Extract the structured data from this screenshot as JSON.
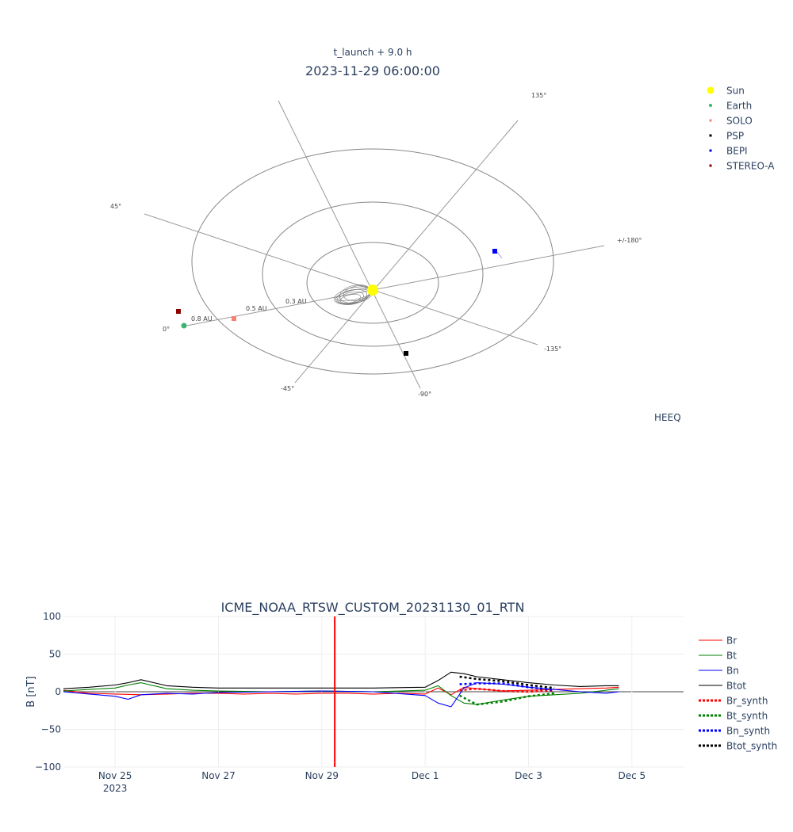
{
  "polar": {
    "subtitle": "t_launch + 9.0 h",
    "title": "2023-11-29 06:00:00",
    "frame_label": "HEEQ",
    "radial_ticks": [
      "0.3 AU",
      "0.5 AU",
      "0.8 AU"
    ],
    "angle_ticks": [
      "0°",
      "45°",
      "135°",
      "+/-180°",
      "-135°",
      "-90°",
      "-45°"
    ],
    "legend": [
      {
        "name": "Sun",
        "color": "#ffff00",
        "symbol": "circle-large"
      },
      {
        "name": "Earth",
        "color": "#3cb371",
        "symbol": "circle"
      },
      {
        "name": "SOLO",
        "color": "#fa8072",
        "symbol": "square"
      },
      {
        "name": "PSP",
        "color": "#000000",
        "symbol": "square"
      },
      {
        "name": "BEPI",
        "color": "#0000ff",
        "symbol": "square"
      },
      {
        "name": "STEREO-A",
        "color": "#8b0000",
        "symbol": "square"
      }
    ]
  },
  "chart_data": {
    "type": "line",
    "title": "ICME_NOAA_RTSW_CUSTOM_20231130_01_RTN",
    "ylabel": "B [nT]",
    "xlabel": "",
    "ylim": [
      -100,
      100
    ],
    "y_ticks": [
      100,
      50,
      0,
      -50,
      -100
    ],
    "y_tick_labels": [
      "100",
      "50",
      "0",
      "−50",
      "−100"
    ],
    "x_range": [
      "2023-11-24",
      "2023-12-06"
    ],
    "x_ticks": [
      {
        "date": "2023-11-25",
        "label": "Nov 25",
        "sublabel": "2023"
      },
      {
        "date": "2023-11-27",
        "label": "Nov 27"
      },
      {
        "date": "2023-11-29",
        "label": "Nov 29"
      },
      {
        "date": "2023-12-01",
        "label": "Dec 1"
      },
      {
        "date": "2023-12-03",
        "label": "Dec 3"
      },
      {
        "date": "2023-12-05",
        "label": "Dec 5"
      }
    ],
    "vline_time": "2023-11-29T06:00",
    "grid": true,
    "legend_position": "right",
    "series": [
      {
        "name": "Br",
        "color": "#ff0000",
        "dash": false,
        "x": [
          "2023-11-24T00:00",
          "2023-11-24T12:00",
          "2023-11-25T00:00",
          "2023-11-25T12:00",
          "2023-11-26T00:00",
          "2023-11-26T12:00",
          "2023-11-27T00:00",
          "2023-11-27T12:00",
          "2023-11-28T00:00",
          "2023-11-28T12:00",
          "2023-11-29T00:00",
          "2023-11-29T12:00",
          "2023-11-30T00:00",
          "2023-11-30T12:00",
          "2023-12-01T00:00",
          "2023-12-01T06:00",
          "2023-12-01T12:00",
          "2023-12-01T18:00",
          "2023-12-02T00:00",
          "2023-12-02T12:00",
          "2023-12-03T00:00",
          "2023-12-03T12:00",
          "2023-12-04T00:00",
          "2023-12-04T12:00",
          "2023-12-04T18:00"
        ],
        "y": [
          2,
          -2,
          -3,
          -4,
          -3,
          -2,
          -2,
          -3,
          -2,
          -3,
          -2,
          -2,
          -3,
          -2,
          -3,
          5,
          -4,
          6,
          4,
          1,
          2,
          3,
          4,
          5,
          6
        ]
      },
      {
        "name": "Bt",
        "color": "#008000",
        "dash": false,
        "x": [
          "2023-11-24T00:00",
          "2023-11-24T12:00",
          "2023-11-25T00:00",
          "2023-11-25T06:00",
          "2023-11-25T12:00",
          "2023-11-26T00:00",
          "2023-11-26T12:00",
          "2023-11-27T00:00",
          "2023-11-28T00:00",
          "2023-11-29T00:00",
          "2023-11-30T00:00",
          "2023-12-01T00:00",
          "2023-12-01T06:00",
          "2023-12-01T12:00",
          "2023-12-01T18:00",
          "2023-12-02T00:00",
          "2023-12-02T12:00",
          "2023-12-03T00:00",
          "2023-12-03T12:00",
          "2023-12-04T00:00",
          "2023-12-04T12:00",
          "2023-12-04T18:00"
        ],
        "y": [
          1,
          3,
          5,
          9,
          12,
          4,
          2,
          1,
          0,
          1,
          0,
          2,
          8,
          -5,
          -15,
          -17,
          -11,
          -6,
          -4,
          -2,
          2,
          4
        ]
      },
      {
        "name": "Bn",
        "color": "#0000ff",
        "dash": false,
        "x": [
          "2023-11-24T00:00",
          "2023-11-24T12:00",
          "2023-11-25T00:00",
          "2023-11-25T06:00",
          "2023-11-25T12:00",
          "2023-11-26T00:00",
          "2023-11-26T12:00",
          "2023-11-27T00:00",
          "2023-11-28T00:00",
          "2023-11-29T00:00",
          "2023-11-30T00:00",
          "2023-12-01T00:00",
          "2023-12-01T06:00",
          "2023-12-01T12:00",
          "2023-12-01T18:00",
          "2023-12-02T00:00",
          "2023-12-02T12:00",
          "2023-12-03T00:00",
          "2023-12-03T12:00",
          "2023-12-04T00:00",
          "2023-12-04T12:00",
          "2023-12-04T18:00"
        ],
        "y": [
          0,
          -3,
          -6,
          -10,
          -4,
          -2,
          -3,
          -1,
          0,
          1,
          0,
          -5,
          -15,
          -20,
          5,
          12,
          10,
          6,
          3,
          0,
          -2,
          0
        ]
      },
      {
        "name": "Btot",
        "color": "#000000",
        "dash": false,
        "x": [
          "2023-11-24T00:00",
          "2023-11-24T12:00",
          "2023-11-25T00:00",
          "2023-11-25T06:00",
          "2023-11-25T12:00",
          "2023-11-26T00:00",
          "2023-11-26T12:00",
          "2023-11-27T00:00",
          "2023-11-28T00:00",
          "2023-11-29T00:00",
          "2023-11-30T00:00",
          "2023-12-01T00:00",
          "2023-12-01T06:00",
          "2023-12-01T12:00",
          "2023-12-01T18:00",
          "2023-12-02T00:00",
          "2023-12-02T12:00",
          "2023-12-03T00:00",
          "2023-12-03T12:00",
          "2023-12-04T00:00",
          "2023-12-04T12:00",
          "2023-12-04T18:00"
        ],
        "y": [
          4,
          6,
          9,
          12,
          16,
          8,
          6,
          5,
          5,
          5,
          5,
          6,
          15,
          26,
          24,
          20,
          16,
          12,
          9,
          7,
          8,
          8
        ]
      },
      {
        "name": "Br_synth",
        "color": "#ff0000",
        "dash": true,
        "x": [
          "2023-12-01T16:00",
          "2023-12-02T00:00",
          "2023-12-02T12:00",
          "2023-12-03T00:00",
          "2023-12-03T12:00"
        ],
        "y": [
          2,
          4,
          1,
          0,
          2
        ]
      },
      {
        "name": "Bt_synth",
        "color": "#008000",
        "dash": true,
        "x": [
          "2023-12-01T16:00",
          "2023-12-02T00:00",
          "2023-12-02T12:00",
          "2023-12-03T00:00",
          "2023-12-03T12:00"
        ],
        "y": [
          -5,
          -17,
          -13,
          -6,
          -2
        ]
      },
      {
        "name": "Bn_synth",
        "color": "#0000ff",
        "dash": true,
        "x": [
          "2023-12-01T16:00",
          "2023-12-02T00:00",
          "2023-12-02T12:00",
          "2023-12-03T00:00",
          "2023-12-03T12:00"
        ],
        "y": [
          10,
          11,
          11,
          6,
          2
        ]
      },
      {
        "name": "Btot_synth",
        "color": "#000000",
        "dash": true,
        "x": [
          "2023-12-01T16:00",
          "2023-12-02T00:00",
          "2023-12-02T12:00",
          "2023-12-03T00:00",
          "2023-12-03T12:00"
        ],
        "y": [
          20,
          17,
          14,
          9,
          5
        ]
      }
    ]
  }
}
